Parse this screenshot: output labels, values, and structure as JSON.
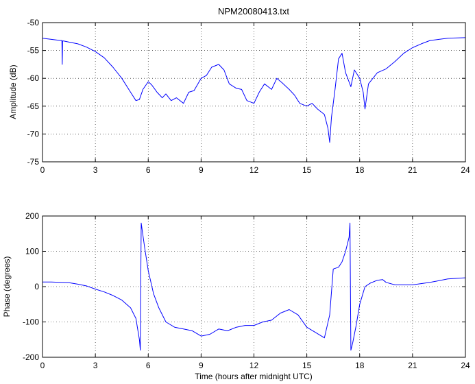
{
  "chart_data": [
    {
      "type": "line",
      "title": "NPM20080413.txt",
      "xlabel": "",
      "ylabel": "Amplitude (dB)",
      "xlim": [
        0,
        24
      ],
      "ylim": [
        -75,
        -50
      ],
      "xticks": [
        0,
        3,
        6,
        9,
        12,
        15,
        18,
        21,
        24
      ],
      "yticks": [
        -75,
        -70,
        -65,
        -60,
        -55,
        -50
      ],
      "grid": true,
      "color": "#0000ff",
      "series": [
        {
          "x": [
            0,
            0.5,
            1.0,
            1.1,
            1.12,
            1.14,
            1.2,
            1.5,
            2,
            2.5,
            3,
            3.5,
            4,
            4.5,
            5,
            5.3,
            5.5,
            5.7,
            6.0,
            6.2,
            6.5,
            6.8,
            7,
            7.3,
            7.6,
            8,
            8.3,
            8.6,
            9,
            9.3,
            9.6,
            10,
            10.3,
            10.6,
            11,
            11.3,
            11.6,
            12,
            12.3,
            12.6,
            13,
            13.3,
            13.6,
            14,
            14.3,
            14.6,
            15,
            15.3,
            15.6,
            16,
            16.2,
            16.3,
            16.4,
            16.6,
            16.8,
            17.0,
            17.2,
            17.5,
            17.7,
            18.0,
            18.2,
            18.3,
            18.5,
            19,
            19.5,
            20,
            20.5,
            21,
            21.5,
            22,
            22.5,
            23,
            24
          ],
          "values": [
            -52.8,
            -53.0,
            -53.2,
            -53.2,
            -57.5,
            -53.3,
            -53.3,
            -53.5,
            -53.8,
            -54.4,
            -55.2,
            -56.3,
            -58,
            -60,
            -62.5,
            -64,
            -63.8,
            -62,
            -60.6,
            -61.2,
            -62.5,
            -63.5,
            -62.8,
            -64,
            -63.5,
            -64.5,
            -62.5,
            -62.2,
            -60,
            -59.5,
            -58,
            -57.5,
            -58.5,
            -61,
            -61.8,
            -62,
            -64,
            -64.5,
            -62.5,
            -61,
            -62,
            -60,
            -60.8,
            -62,
            -63,
            -64.5,
            -65,
            -64.5,
            -65.5,
            -66.5,
            -69,
            -71.5,
            -67,
            -62,
            -56.5,
            -55.5,
            -59,
            -61.5,
            -58.5,
            -60,
            -62.5,
            -65.5,
            -61,
            -59,
            -58.3,
            -57,
            -55.5,
            -54.5,
            -53.8,
            -53.2,
            -53,
            -52.8,
            -52.7
          ]
        }
      ]
    },
    {
      "type": "line",
      "title": "",
      "xlabel": "Time (hours after midnight UTC)",
      "ylabel": "Phase (degrees)",
      "xlim": [
        0,
        24
      ],
      "ylim": [
        -200,
        200
      ],
      "xticks": [
        0,
        3,
        6,
        9,
        12,
        15,
        18,
        21,
        24
      ],
      "yticks": [
        -200,
        -100,
        0,
        100,
        200
      ],
      "grid": true,
      "color": "#0000ff",
      "series": [
        {
          "x": [
            0,
            0.5,
            1,
            1.5,
            2,
            2.5,
            3,
            3.5,
            4,
            4.5,
            5,
            5.3,
            5.5,
            5.55,
            5.6,
            5.8,
            6.0,
            6.3,
            6.6,
            7,
            7.5,
            8,
            8.5,
            9,
            9.5,
            10,
            10.5,
            11,
            11.5,
            12,
            12.5,
            13,
            13.5,
            14,
            14.5,
            15,
            15.5,
            16,
            16.3,
            16.5,
            16.8,
            17,
            17.2,
            17.4,
            17.45,
            17.5,
            17.6,
            17.8,
            18,
            18.3,
            18.6,
            19,
            19.3,
            19.5,
            20,
            21,
            22,
            23,
            24
          ],
          "values": [
            13,
            13,
            12,
            11,
            7,
            2,
            -7,
            -15,
            -25,
            -38,
            -60,
            -90,
            -150,
            -180,
            180,
            110,
            45,
            -20,
            -60,
            -100,
            -115,
            -120,
            -125,
            -140,
            -135,
            -120,
            -125,
            -115,
            -110,
            -110,
            -100,
            -95,
            -75,
            -65,
            -80,
            -115,
            -130,
            -145,
            -80,
            50,
            55,
            70,
            100,
            140,
            180,
            -180,
            -160,
            -110,
            -50,
            0,
            10,
            18,
            20,
            12,
            5,
            5,
            12,
            22,
            25
          ]
        }
      ]
    }
  ]
}
